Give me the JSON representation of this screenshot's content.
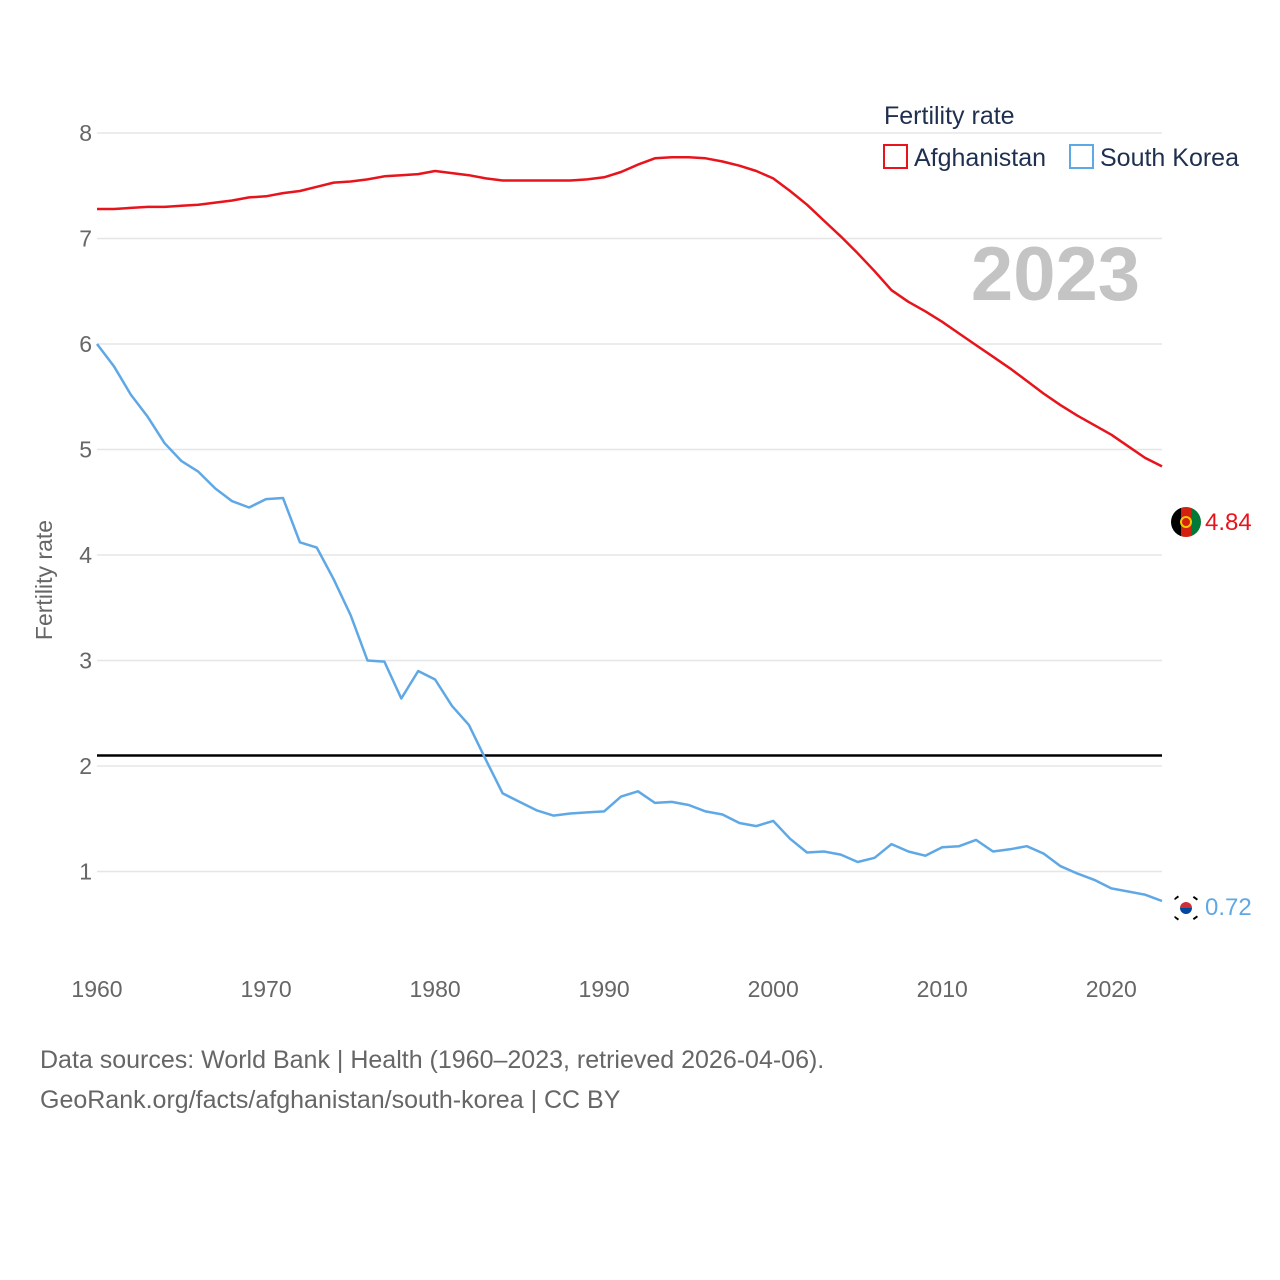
{
  "chart_data": {
    "type": "line",
    "title": "",
    "ylabel": "Fertility rate",
    "xlabel": "",
    "ylim": [
      0,
      8
    ],
    "xlim": [
      1960,
      2023
    ],
    "yticks": [
      1,
      2,
      3,
      4,
      5,
      6,
      7,
      8
    ],
    "xticks": [
      1960,
      1970,
      1980,
      1990,
      2000,
      2010,
      2020
    ],
    "grid": true,
    "current_year": "2023",
    "reference_line": {
      "y": 2.1,
      "color": "#000000"
    },
    "legend": {
      "title": "Fertility rate",
      "position": "top-right",
      "entries": [
        "Afghanistan",
        "South Korea"
      ]
    },
    "x": [
      1960,
      1961,
      1962,
      1963,
      1964,
      1965,
      1966,
      1967,
      1968,
      1969,
      1970,
      1971,
      1972,
      1973,
      1974,
      1975,
      1976,
      1977,
      1978,
      1979,
      1980,
      1981,
      1982,
      1983,
      1984,
      1985,
      1986,
      1987,
      1988,
      1989,
      1990,
      1991,
      1992,
      1993,
      1994,
      1995,
      1996,
      1997,
      1998,
      1999,
      2000,
      2001,
      2002,
      2003,
      2004,
      2005,
      2006,
      2007,
      2008,
      2009,
      2010,
      2011,
      2012,
      2013,
      2014,
      2015,
      2016,
      2017,
      2018,
      2019,
      2020,
      2021,
      2022,
      2023
    ],
    "series": [
      {
        "name": "Afghanistan",
        "color": "#e8141c",
        "end_label": "4.84",
        "values": [
          7.28,
          7.28,
          7.29,
          7.3,
          7.3,
          7.31,
          7.32,
          7.34,
          7.36,
          7.39,
          7.4,
          7.43,
          7.45,
          7.49,
          7.53,
          7.54,
          7.56,
          7.59,
          7.6,
          7.61,
          7.64,
          7.62,
          7.6,
          7.57,
          7.55,
          7.55,
          7.55,
          7.55,
          7.55,
          7.56,
          7.58,
          7.63,
          7.7,
          7.76,
          7.77,
          7.77,
          7.76,
          7.73,
          7.69,
          7.64,
          7.57,
          7.45,
          7.32,
          7.17,
          7.02,
          6.86,
          6.69,
          6.51,
          6.4,
          6.31,
          6.21,
          6.1,
          5.99,
          5.88,
          5.77,
          5.65,
          5.53,
          5.42,
          5.32,
          5.23,
          5.14,
          5.03,
          4.92,
          4.84
        ]
      },
      {
        "name": "South Korea",
        "color": "#5fa8e6",
        "end_label": "0.72",
        "values": [
          6.0,
          5.79,
          5.52,
          5.31,
          5.06,
          4.89,
          4.79,
          4.63,
          4.51,
          4.45,
          4.53,
          4.54,
          4.12,
          4.07,
          3.77,
          3.43,
          3.0,
          2.99,
          2.64,
          2.9,
          2.82,
          2.57,
          2.39,
          2.06,
          1.74,
          1.66,
          1.58,
          1.53,
          1.55,
          1.56,
          1.57,
          1.71,
          1.76,
          1.65,
          1.66,
          1.63,
          1.57,
          1.54,
          1.46,
          1.43,
          1.48,
          1.31,
          1.18,
          1.19,
          1.16,
          1.09,
          1.13,
          1.26,
          1.19,
          1.15,
          1.23,
          1.24,
          1.3,
          1.19,
          1.21,
          1.24,
          1.17,
          1.05,
          0.98,
          0.92,
          0.84,
          0.81,
          0.78,
          0.72
        ]
      }
    ]
  },
  "source": {
    "line1": "Data sources: World Bank | Health (1960–2023, retrieved 2026-04-06).",
    "line2": "GeoRank.org/facts/afghanistan/south-korea | CC BY"
  }
}
